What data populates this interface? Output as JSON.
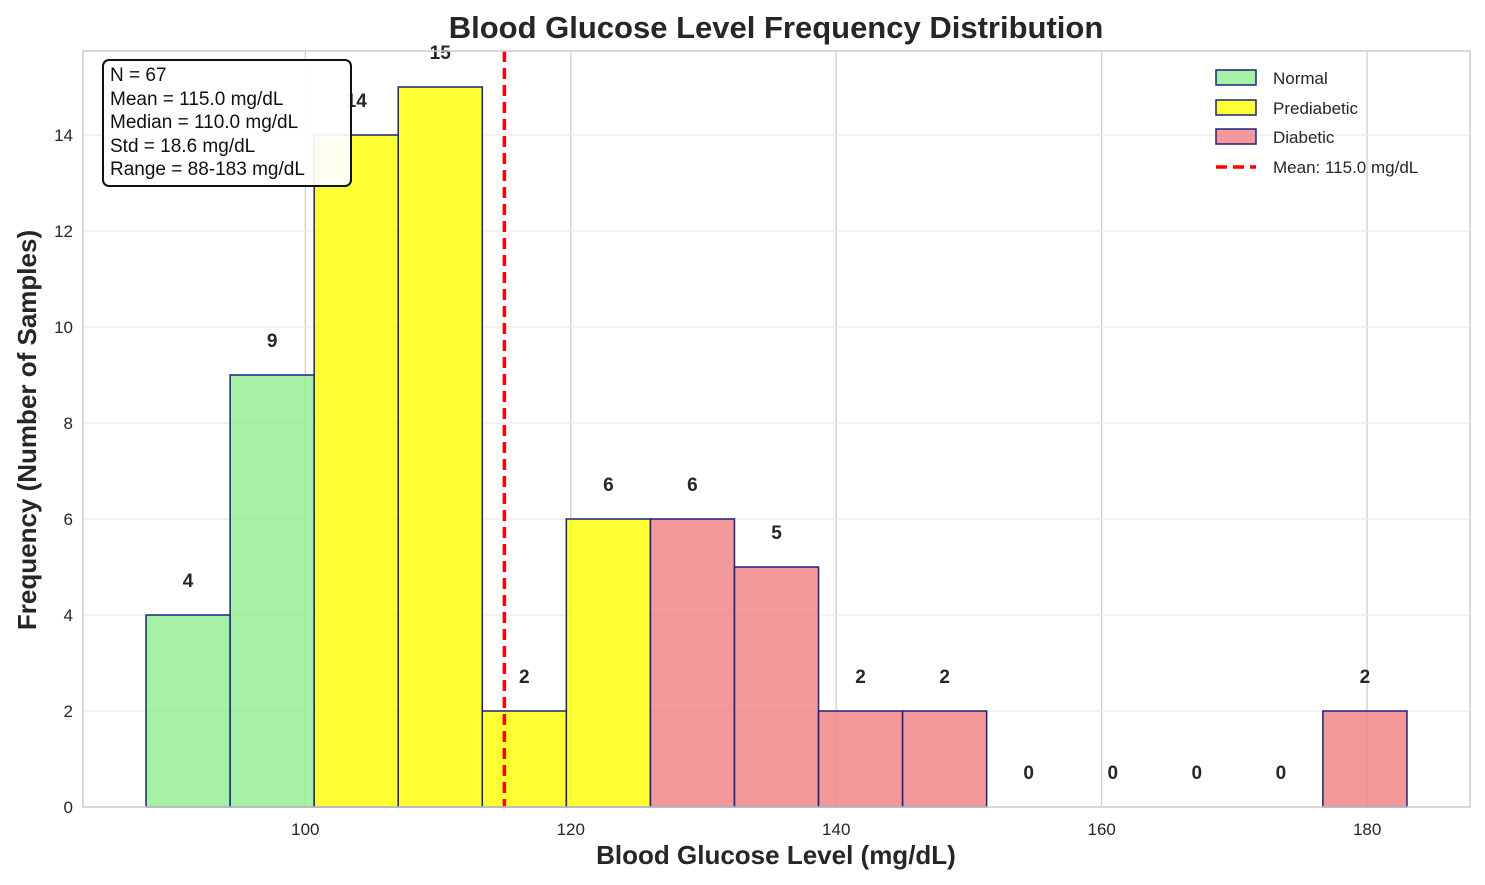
{
  "chart_data": {
    "type": "bar",
    "title": "Blood Glucose Level Frequency Distribution",
    "xlabel": "Blood Glucose Level (mg/dL)",
    "ylabel": "Frequency (Number of Samples)",
    "xlim": [
      83.25,
      187.75
    ],
    "ylim": [
      0,
      15.75
    ],
    "xticks": [
      100,
      120,
      140,
      160,
      180
    ],
    "yticks": [
      0,
      2,
      4,
      6,
      8,
      10,
      12,
      14
    ],
    "grid": true,
    "bin_edges": [
      88,
      94.3333,
      100.6667,
      107,
      113.3333,
      119.6667,
      126,
      132.3333,
      138.6667,
      145,
      151.3333,
      157.6667,
      164,
      170.3333,
      176.6667,
      183
    ],
    "counts": [
      4,
      9,
      14,
      15,
      2,
      6,
      6,
      5,
      2,
      2,
      0,
      0,
      0,
      0,
      2
    ],
    "categories_per_bin": [
      "Normal",
      "Normal",
      "Prediabetic",
      "Prediabetic",
      "Prediabetic",
      "Prediabetic",
      "Diabetic",
      "Diabetic",
      "Diabetic",
      "Diabetic",
      "Diabetic",
      "Diabetic",
      "Diabetic",
      "Diabetic",
      "Diabetic"
    ],
    "series": [
      {
        "name": "Normal",
        "color": "#90ee90"
      },
      {
        "name": "Prediabetic",
        "color": "#ffff00"
      },
      {
        "name": "Diabetic",
        "color": "#f08080"
      }
    ],
    "bar_edge_color": "#1a237e",
    "mean_line": {
      "value": 115.0,
      "label": "Mean: 115.0 mg/dL",
      "color": "#ff0000"
    },
    "legend_position": "top-right",
    "stats_box": [
      "N = 67",
      "Mean = 115.0 mg/dL",
      "Median = 110.0 mg/dL",
      "Std = 18.6 mg/dL",
      "Range = 88-183 mg/dL"
    ]
  }
}
